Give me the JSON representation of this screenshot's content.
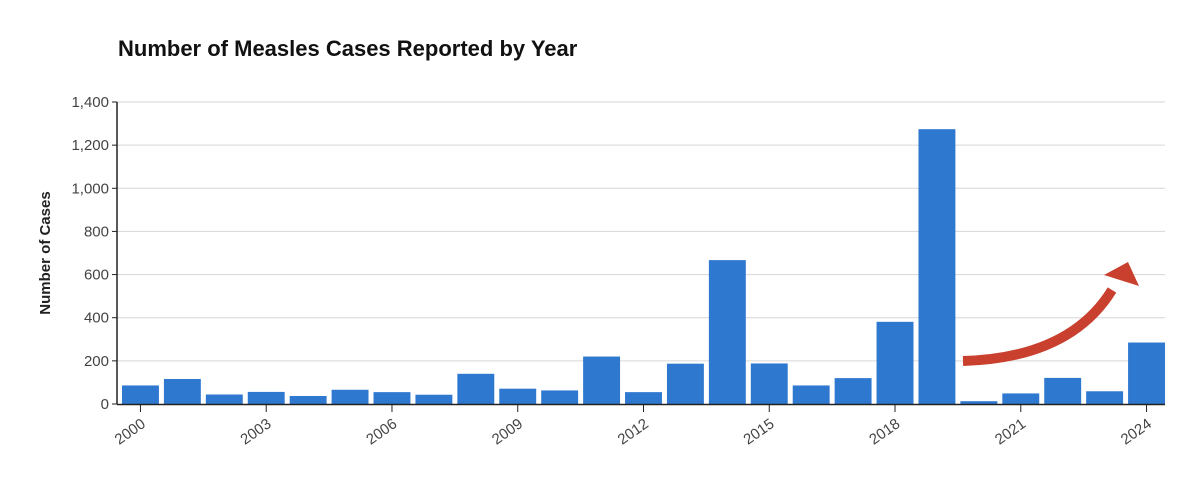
{
  "chart_data": {
    "type": "bar",
    "title": "Number of Measles Cases Reported by Year",
    "xlabel": "",
    "ylabel": "Number of Cases",
    "ylim": [
      0,
      1400
    ],
    "yticks": [
      0,
      200,
      400,
      600,
      800,
      1000,
      1200,
      1400
    ],
    "ytick_labels": [
      "0",
      "200",
      "400",
      "600",
      "800",
      "1,000",
      "1,200",
      "1,400"
    ],
    "grid": true,
    "categories": [
      "2000",
      "2001",
      "2002",
      "2003",
      "2004",
      "2005",
      "2006",
      "2007",
      "2008",
      "2009",
      "2010",
      "2011",
      "2012",
      "2013",
      "2014",
      "2015",
      "2016",
      "2017",
      "2018",
      "2019",
      "2020",
      "2021",
      "2022",
      "2023",
      "2024"
    ],
    "xtick_labels": [
      "2000",
      "2003",
      "2006",
      "2009",
      "2012",
      "2015",
      "2018",
      "2021",
      "2024"
    ],
    "values": [
      86,
      116,
      44,
      56,
      37,
      66,
      55,
      43,
      140,
      71,
      63,
      220,
      55,
      187,
      667,
      188,
      86,
      120,
      381,
      1274,
      13,
      49,
      121,
      59,
      285
    ],
    "bar_color": "#2f78d0",
    "annotation": {
      "type": "curved-arrow",
      "color": "#c9402f",
      "from_year": "2020",
      "to_year": "2024",
      "meaning": "rising trend"
    }
  }
}
